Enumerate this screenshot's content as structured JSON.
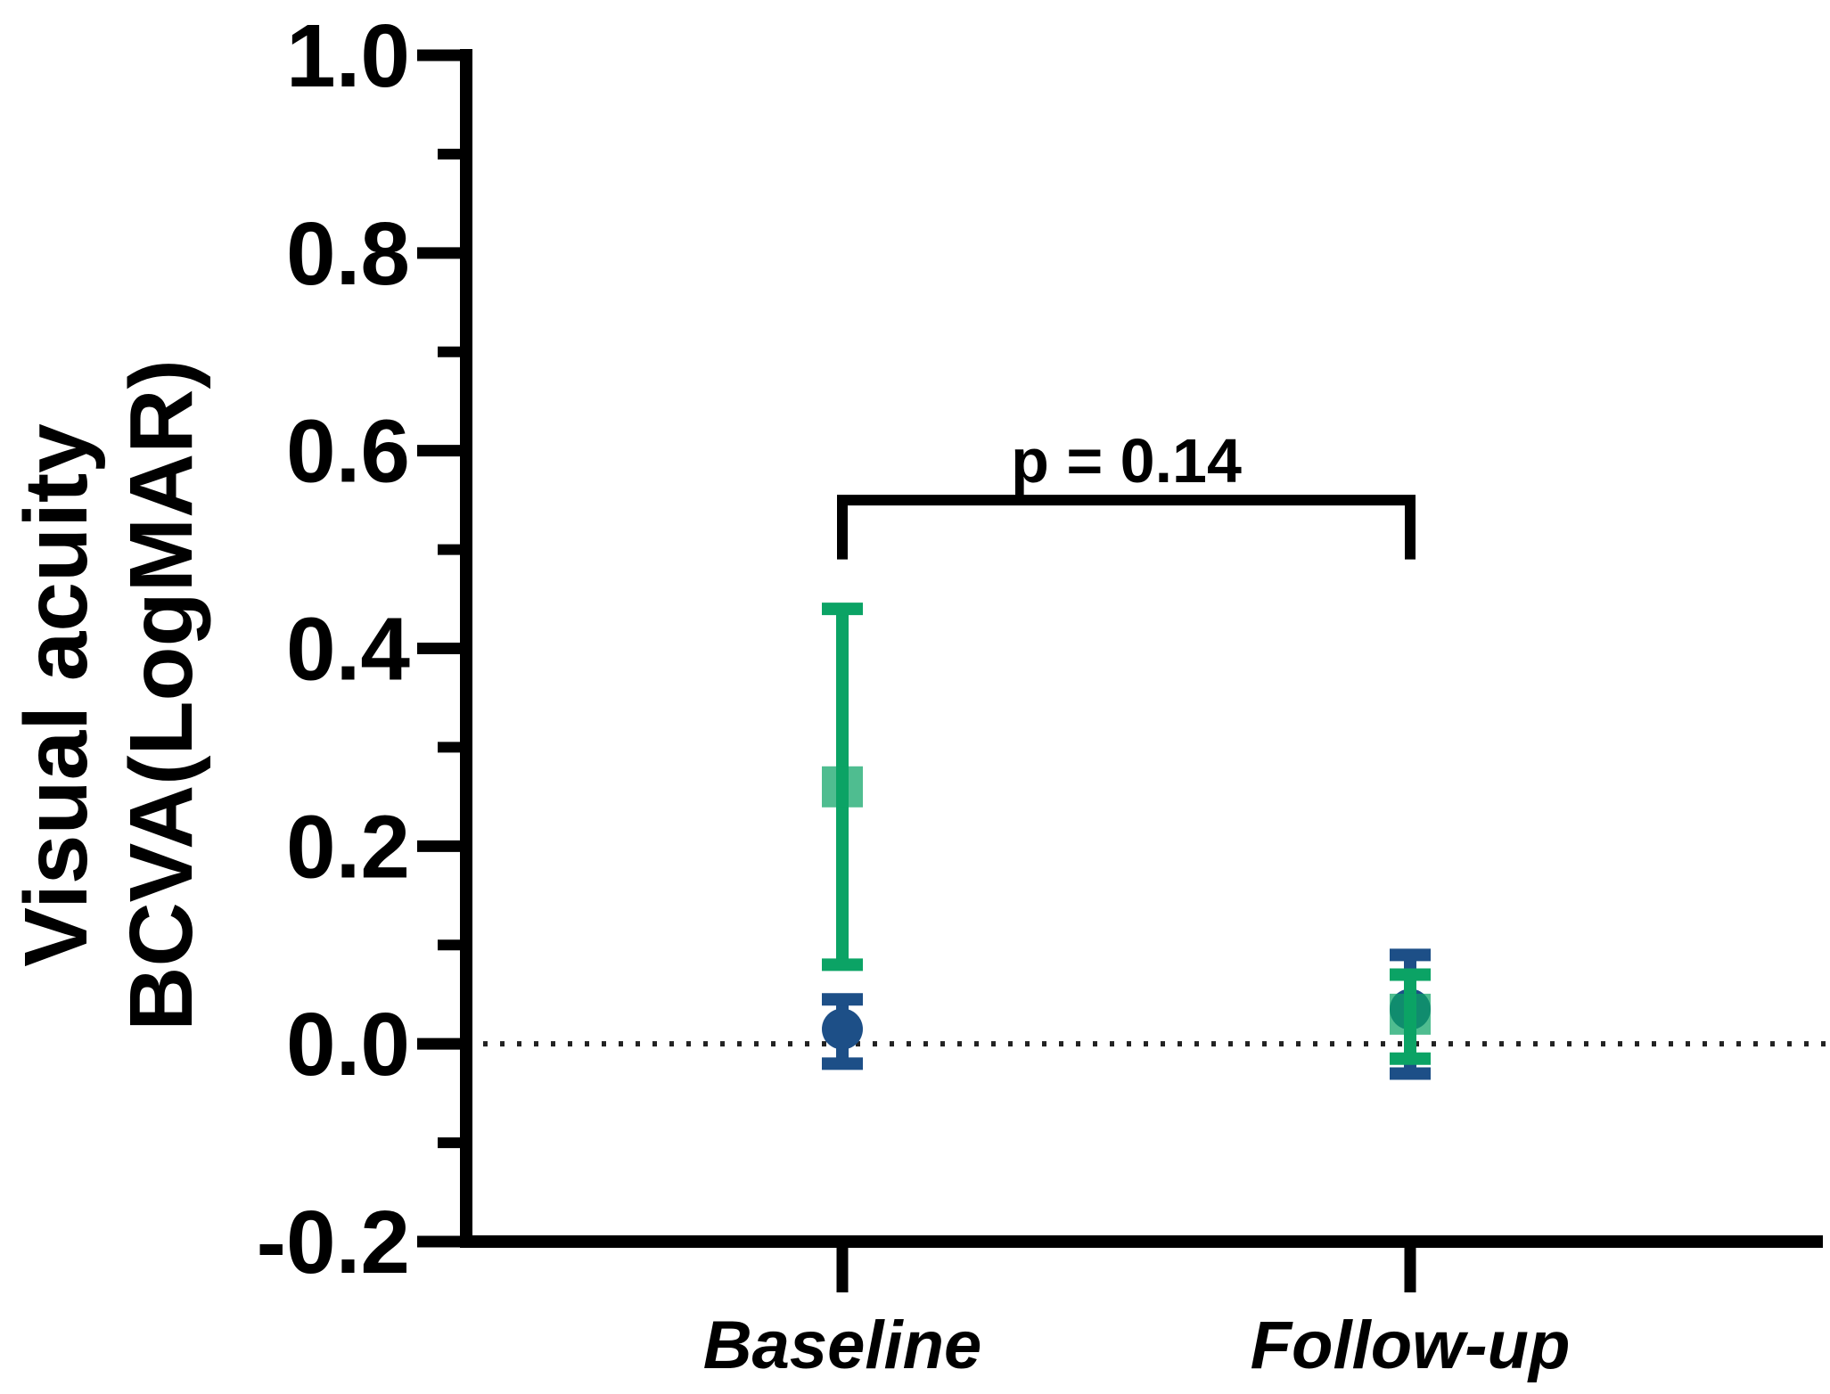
{
  "chart_data": {
    "type": "scatter",
    "title": "",
    "ylabel_lines": [
      "Visual acuity",
      "BCVA(LogMAR)"
    ],
    "xlabel": "",
    "categories": [
      "Baseline",
      "Follow-up"
    ],
    "ylim": [
      -0.2,
      1.0
    ],
    "yticks": [
      1.0,
      0.8,
      0.6,
      0.4,
      0.2,
      0.0,
      -0.2
    ],
    "yminor_step": 0.1,
    "grid": false,
    "legend": "none",
    "zero_reference_line": {
      "y": 0.0,
      "style": "dotted",
      "color": "#222222"
    },
    "axis_color": "#000000",
    "series": [
      {
        "name": "blue-circle-series",
        "marker": "circle",
        "color": "#1d4f87",
        "fill_opacity": 1,
        "points": [
          {
            "category": "Baseline",
            "mean": 0.015,
            "ci_low": -0.02,
            "ci_high": 0.045
          },
          {
            "category": "Follow-up",
            "mean": 0.035,
            "ci_low": -0.03,
            "ci_high": 0.09
          }
        ]
      },
      {
        "name": "green-square-series",
        "marker": "square",
        "color": "#0ba365",
        "fill_opacity": 0.72,
        "points": [
          {
            "category": "Baseline",
            "mean": 0.26,
            "ci_low": 0.08,
            "ci_high": 0.44
          },
          {
            "category": "Follow-up",
            "mean": 0.03,
            "ci_low": -0.015,
            "ci_high": 0.07
          }
        ]
      }
    ],
    "annotation": {
      "text": "p = 0.14",
      "from_category": "Baseline",
      "to_category": "Follow-up",
      "bracket_y": 0.55,
      "bracket_drop_to": 0.49
    }
  }
}
